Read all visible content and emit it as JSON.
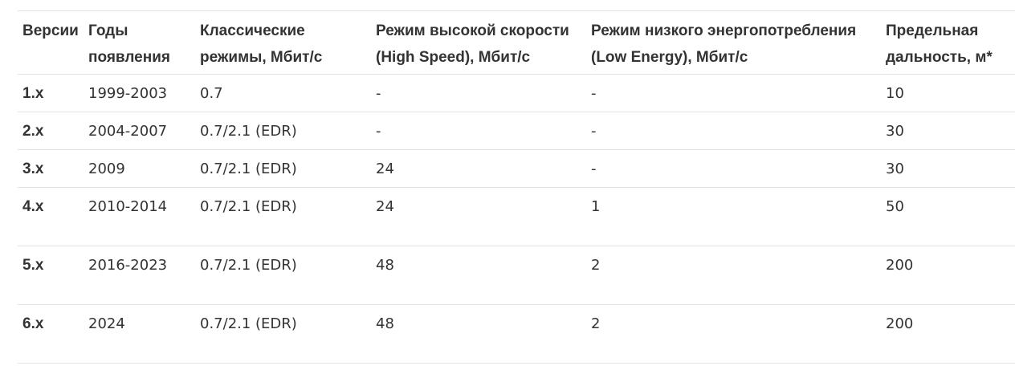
{
  "table": {
    "headers": [
      [
        "Версии",
        ""
      ],
      [
        "Годы",
        "появления"
      ],
      [
        "Классические",
        "режимы, Мбит/с"
      ],
      [
        "Режим высокой скорости",
        "(High Speed), Мбит/с"
      ],
      [
        "Режим низкого энергопотребления",
        "(Low Energy), Мбит/с"
      ],
      [
        "Предельная",
        "дальность, м*"
      ]
    ],
    "rows": [
      [
        "1.x",
        "1999-2003",
        "0.7",
        "-",
        "-",
        "10"
      ],
      [
        "2.x",
        "2004-2007",
        "0.7/2.1 (EDR)",
        "-",
        "-",
        "30"
      ],
      [
        "3.x",
        "2009",
        "0.7/2.1 (EDR)",
        "24",
        "-",
        "30"
      ],
      [
        "4.x",
        "2010-2014",
        "0.7/2.1 (EDR)",
        "24",
        "1",
        "50"
      ],
      [
        "5.x",
        "2016-2023",
        "0.7/2.1 (EDR)",
        "48",
        "2",
        "200"
      ],
      [
        "6.x",
        "2024",
        "0.7/2.1 (EDR)",
        "48",
        "2",
        "200"
      ]
    ]
  }
}
